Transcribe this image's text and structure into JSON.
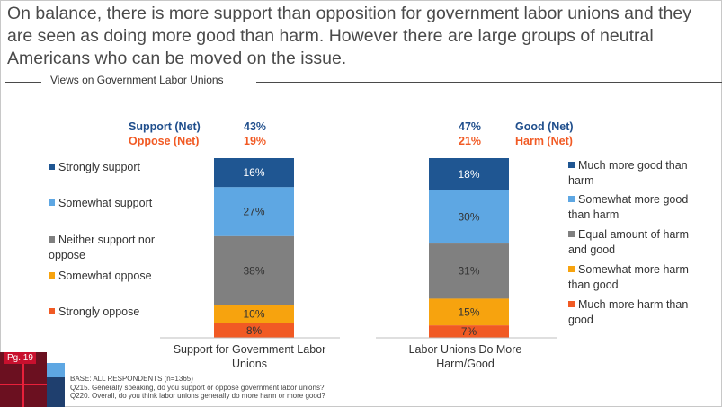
{
  "headline": "On balance, there is more support than opposition for government labor unions and they are seen as doing more good than harm. However there are large groups of neutral Americans who can be moved on the issue.",
  "subtitle": "Views on Government Labor Unions",
  "page_tag": "Pg. 19",
  "footnote": {
    "base": "BASE: ALL RESPONDENTS (n=1365)",
    "q1": "Q215. Generally speaking, do you support or oppose government labor unions?",
    "q2": "Q220. Overall, do you think labor unions generally do more harm or more good?"
  },
  "colors": {
    "dark_blue": "#1f5692",
    "light_blue": "#5ea7e3",
    "gray": "#808080",
    "orange": "#f7a30e",
    "red_orange": "#f15a24",
    "net_blue": "#1f4e8c",
    "net_orange": "#f15a24"
  },
  "left": {
    "net_support_label": "Support (Net)",
    "net_support_value": "43%",
    "net_oppose_label": "Oppose (Net)",
    "net_oppose_value": "19%",
    "legend": [
      {
        "label": "Strongly support",
        "color": "#1f5692"
      },
      {
        "label": "Somewhat support",
        "color": "#5ea7e3"
      },
      {
        "label": "Neither support nor oppose",
        "color": "#808080"
      },
      {
        "label": "Somewhat oppose",
        "color": "#f7a30e"
      },
      {
        "label": "Strongly oppose",
        "color": "#f15a24"
      }
    ]
  },
  "right": {
    "net_good_label": "Good (Net)",
    "net_good_value": "47%",
    "net_harm_label": "Harm (Net)",
    "net_harm_value": "21%",
    "legend": [
      {
        "label": "Much more good than harm",
        "color": "#1f5692"
      },
      {
        "label": "Somewhat more good than harm",
        "color": "#5ea7e3"
      },
      {
        "label": "Equal amount of harm and good",
        "color": "#808080"
      },
      {
        "label": "Somewhat more harm than good",
        "color": "#f7a30e"
      },
      {
        "label": "Much more harm than good",
        "color": "#f15a24"
      }
    ]
  },
  "chart_data": {
    "type": "bar",
    "stacked": true,
    "title": "Views on Government Labor Unions",
    "categories": [
      "Support for Government Labor Unions",
      "Labor Unions Do More Harm/Good"
    ],
    "series": [
      {
        "name": "Strongly support / Much more good than harm",
        "values": [
          16,
          18
        ],
        "labels": [
          "16%",
          "18%"
        ]
      },
      {
        "name": "Somewhat support / Somewhat more good than harm",
        "values": [
          27,
          30
        ],
        "labels": [
          "27%",
          "30%"
        ]
      },
      {
        "name": "Neither support nor oppose / Equal amount of harm and good",
        "values": [
          38,
          31
        ],
        "labels": [
          "38%",
          "31%"
        ]
      },
      {
        "name": "Somewhat oppose / Somewhat more harm than good",
        "values": [
          10,
          15
        ],
        "labels": [
          "10%",
          "15%"
        ]
      },
      {
        "name": "Strongly oppose / Much more harm than good",
        "values": [
          8,
          7
        ],
        "labels": [
          "8%",
          "7%"
        ]
      }
    ],
    "ylim": [
      0,
      100
    ]
  }
}
